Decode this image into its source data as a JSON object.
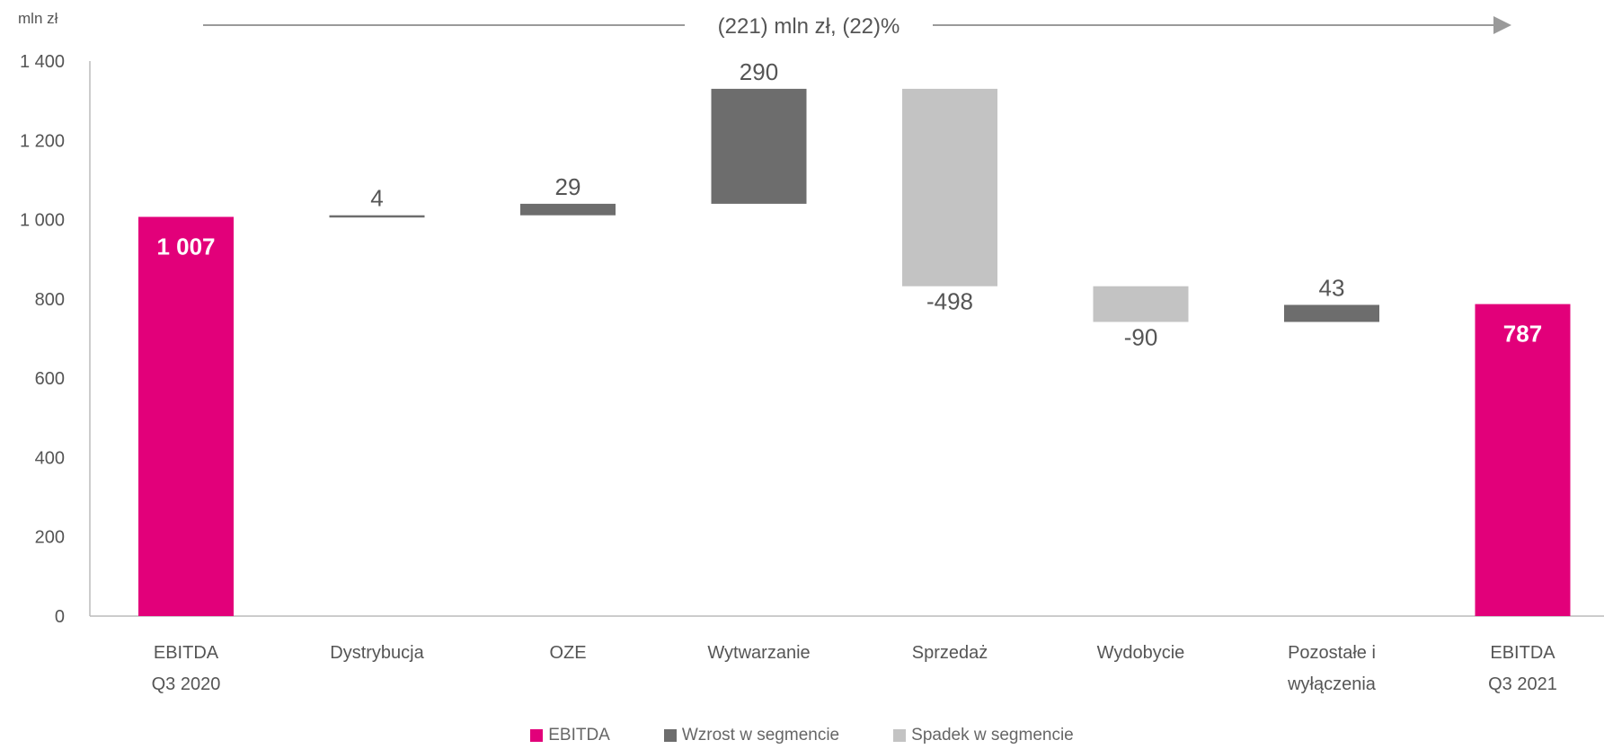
{
  "chart_data": {
    "type": "waterfall",
    "unit_label": "mln zł",
    "annotation": "(221) mln zł, (22)%",
    "yticks": [
      "0",
      "200",
      "400",
      "600",
      "800",
      "1 000",
      "1 200",
      "1 400"
    ],
    "ylim": [
      0,
      1400
    ],
    "categories": [
      {
        "line1": "EBITDA",
        "line2": "Q3 2020"
      },
      {
        "line1": "Dystrybucja",
        "line2": ""
      },
      {
        "line1": "OZE",
        "line2": ""
      },
      {
        "line1": "Wytwarzanie",
        "line2": ""
      },
      {
        "line1": "Sprzedaż",
        "line2": ""
      },
      {
        "line1": "Wydobycie",
        "line2": ""
      },
      {
        "line1": "Pozostałe i",
        "line2": "wyłączenia"
      },
      {
        "line1": "EBITDA",
        "line2": "Q3 2021"
      }
    ],
    "bars": [
      {
        "kind": "total",
        "base": 0,
        "value": 1007,
        "label": "1 007"
      },
      {
        "kind": "increase",
        "base": 1007,
        "value": 4,
        "label": "4"
      },
      {
        "kind": "increase",
        "base": 1011,
        "value": 29,
        "label": "29"
      },
      {
        "kind": "increase",
        "base": 1040,
        "value": 290,
        "label": "290"
      },
      {
        "kind": "decrease",
        "base": 1330,
        "value": -498,
        "label": "-498"
      },
      {
        "kind": "decrease",
        "base": 832,
        "value": -90,
        "label": "-90"
      },
      {
        "kind": "increase",
        "base": 742,
        "value": 43,
        "label": "43"
      },
      {
        "kind": "total",
        "base": 0,
        "value": 787,
        "label": "787"
      }
    ],
    "legend": [
      {
        "key": "total",
        "label": "EBITDA"
      },
      {
        "key": "increase",
        "label": "Wzrost w segmencie"
      },
      {
        "key": "decrease",
        "label": "Spadek w segmencie"
      }
    ],
    "colors": {
      "total": "#e2007a",
      "increase": "#6d6d6d",
      "decrease": "#c3c3c3",
      "axis": "#bbbbbb",
      "arrow": "#9a9a9a"
    }
  }
}
